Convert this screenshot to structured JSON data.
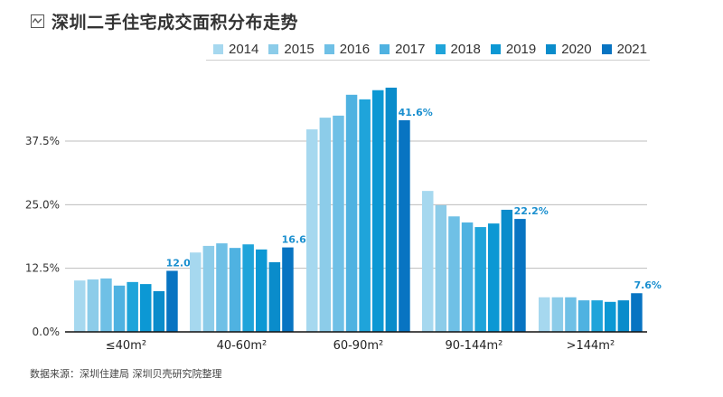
{
  "header": {
    "title": "深圳二手住宅成交面积分布走势",
    "icon": "line-chart-icon"
  },
  "footer": {
    "source": "数据来源：深圳住建局 深圳贝壳研究院整理"
  },
  "colors": [
    "#a6d8ef",
    "#8ccce9",
    "#6fc0e6",
    "#4fb2e1",
    "#1fa4da",
    "#0c98d4",
    "#0a8ccb",
    "#0874c2"
  ],
  "label_color": "#1a8fcf",
  "chart_data": {
    "type": "bar",
    "title": "深圳二手住宅成交面积分布走势",
    "xlabel": "",
    "ylabel": "",
    "ylim": [
      0,
      50
    ],
    "yticks": [
      0,
      12.5,
      25,
      37.5
    ],
    "ytick_labels": [
      "0.0%",
      "12.5%",
      "25.0%",
      "37.5%"
    ],
    "grid": true,
    "legend_position": "top-right",
    "categories": [
      "≤40m²",
      "40-60m²",
      "60-90m²",
      "90-144m²",
      ">144m²"
    ],
    "series": [
      {
        "name": "2014",
        "values": [
          10.1,
          15.6,
          39.8,
          27.7,
          6.8
        ]
      },
      {
        "name": "2015",
        "values": [
          10.3,
          16.9,
          42.1,
          24.9,
          6.8
        ]
      },
      {
        "name": "2016",
        "values": [
          10.5,
          17.4,
          42.5,
          22.7,
          6.8
        ]
      },
      {
        "name": "2017",
        "values": [
          9.1,
          16.5,
          46.6,
          21.5,
          6.2
        ]
      },
      {
        "name": "2018",
        "values": [
          9.8,
          17.2,
          45.7,
          20.6,
          6.2
        ]
      },
      {
        "name": "2019",
        "values": [
          9.4,
          16.2,
          47.5,
          21.3,
          5.9
        ]
      },
      {
        "name": "2020",
        "values": [
          8.0,
          13.7,
          48.0,
          24.0,
          6.2
        ]
      },
      {
        "name": "2021",
        "values": [
          12.0,
          16.6,
          41.6,
          22.2,
          7.6
        ]
      }
    ],
    "annotations": [
      "12.0%",
      "16.6%",
      "41.6%",
      "22.2%",
      "7.6%"
    ]
  }
}
